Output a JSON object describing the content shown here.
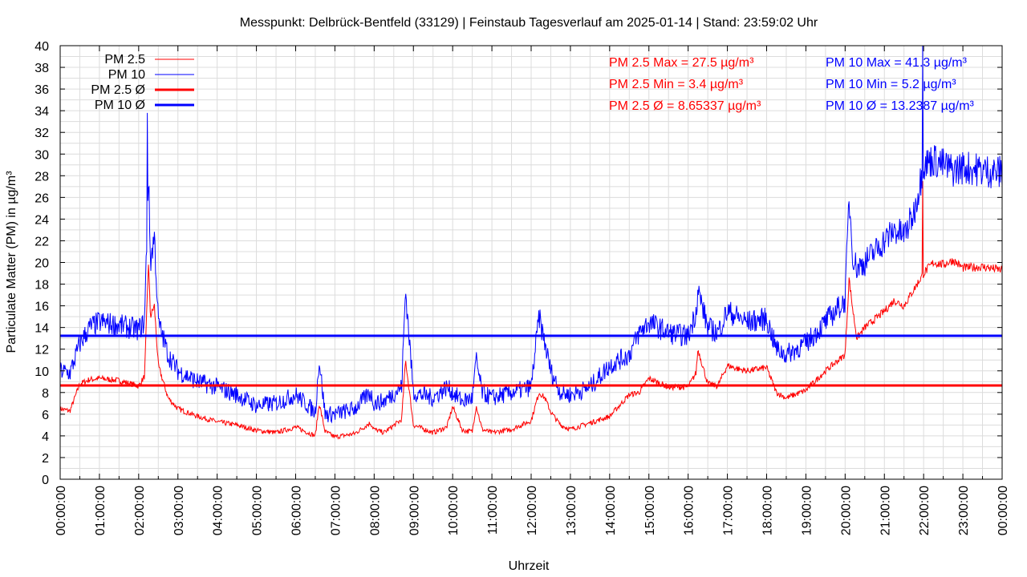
{
  "chart_data": {
    "type": "line",
    "title": "Messpunkt: Delbrück-Bentfeld (33129) | Feinstaub Tagesverlauf am 2025-01-14 | Stand: 23:59:02 Uhr",
    "xlabel": "Uhrzeit",
    "ylabel": "Particulate Matter (PM) in µg/m³",
    "ylim": [
      0,
      40
    ],
    "xlim_hours": [
      0,
      24
    ],
    "yticks": [
      0,
      2,
      4,
      6,
      8,
      10,
      12,
      14,
      16,
      18,
      20,
      22,
      24,
      26,
      28,
      30,
      32,
      34,
      36,
      38,
      40
    ],
    "xticks": [
      "00:00:00",
      "01:00:00",
      "02:00:00",
      "03:00:00",
      "04:00:00",
      "05:00:00",
      "06:00:00",
      "07:00:00",
      "08:00:00",
      "09:00:00",
      "10:00:00",
      "11:00:00",
      "12:00:00",
      "13:00:00",
      "14:00:00",
      "15:00:00",
      "16:00:00",
      "17:00:00",
      "18:00:00",
      "19:00:00",
      "20:00:00",
      "21:00:00",
      "22:00:00",
      "23:00:00",
      "00:00:00"
    ],
    "grid": true,
    "legend_position": "top-left",
    "series": [
      {
        "name": "PM 2.5",
        "color": "#ff0000",
        "x_hours": [
          0,
          0.25,
          0.5,
          0.75,
          1.0,
          1.5,
          2.0,
          2.15,
          2.25,
          2.3,
          2.4,
          2.5,
          2.75,
          3.0,
          3.5,
          4.0,
          4.5,
          5.0,
          5.5,
          6.0,
          6.5,
          6.6,
          6.75,
          7.0,
          7.5,
          7.9,
          8.0,
          8.25,
          8.7,
          8.8,
          9.0,
          9.5,
          9.85,
          10.0,
          10.25,
          10.5,
          10.6,
          10.75,
          11.0,
          11.5,
          12.0,
          12.2,
          12.35,
          12.5,
          12.75,
          13.0,
          13.5,
          14.0,
          14.5,
          14.75,
          15.0,
          15.5,
          16.0,
          16.2,
          16.25,
          16.5,
          16.75,
          17.0,
          17.25,
          17.5,
          18.0,
          18.25,
          18.5,
          19.0,
          19.5,
          20.0,
          20.1,
          20.2,
          20.3,
          20.5,
          21.0,
          21.25,
          21.5,
          21.75,
          22.0,
          22.25,
          22.5,
          22.75,
          23.0,
          23.5,
          24.0
        ],
        "values": [
          6.5,
          6.3,
          8.8,
          9.2,
          9.3,
          9.1,
          8.6,
          9.5,
          20.0,
          15.0,
          16.0,
          10.5,
          7.5,
          6.5,
          5.8,
          5.3,
          5.0,
          4.5,
          4.3,
          4.8,
          4.0,
          7.0,
          4.4,
          3.9,
          4.2,
          5.2,
          4.6,
          4.3,
          5.5,
          11.0,
          5.0,
          4.3,
          4.8,
          6.7,
          4.5,
          4.4,
          6.8,
          4.6,
          4.3,
          4.6,
          5.4,
          8.0,
          7.5,
          6.2,
          5.0,
          4.6,
          5.2,
          5.8,
          7.8,
          8.0,
          9.3,
          8.5,
          8.5,
          9.8,
          12.0,
          8.8,
          8.6,
          10.5,
          10.2,
          10.0,
          10.3,
          8.0,
          7.5,
          8.2,
          10.0,
          11.5,
          18.5,
          15.5,
          13.0,
          14.0,
          15.5,
          16.5,
          16.0,
          17.5,
          19.0,
          20.0,
          19.8,
          20.2,
          19.5,
          19.6,
          19.3
        ],
        "max": 27.5,
        "min": 3.4,
        "mean": 8.65337
      },
      {
        "name": "PM 10",
        "color": "#0000ff",
        "x_hours": [
          0,
          0.25,
          0.5,
          0.75,
          1.0,
          1.5,
          2.0,
          2.15,
          2.25,
          2.3,
          2.4,
          2.5,
          2.75,
          3.0,
          3.5,
          4.0,
          4.5,
          5.0,
          5.5,
          6.0,
          6.5,
          6.6,
          6.75,
          7.0,
          7.5,
          7.9,
          8.0,
          8.25,
          8.7,
          8.8,
          9.0,
          9.5,
          9.85,
          10.0,
          10.25,
          10.5,
          10.6,
          10.75,
          11.0,
          11.5,
          12.0,
          12.2,
          12.35,
          12.5,
          12.75,
          13.0,
          13.5,
          14.0,
          14.5,
          14.75,
          15.0,
          15.5,
          16.0,
          16.2,
          16.25,
          16.5,
          16.75,
          17.0,
          17.25,
          17.5,
          18.0,
          18.25,
          18.5,
          19.0,
          19.5,
          20.0,
          20.1,
          20.2,
          20.3,
          20.5,
          21.0,
          21.25,
          21.5,
          21.75,
          22.0,
          22.25,
          22.5,
          22.75,
          23.0,
          23.5,
          24.0
        ],
        "values": [
          10.0,
          9.8,
          12.5,
          14.0,
          14.5,
          14.2,
          13.8,
          14.5,
          28.0,
          20.0,
          22.5,
          14.5,
          11.5,
          10.0,
          9.0,
          8.5,
          7.8,
          6.8,
          7.0,
          7.8,
          6.2,
          11.0,
          6.0,
          6.0,
          6.5,
          8.0,
          7.0,
          7.2,
          8.5,
          17.5,
          8.0,
          7.5,
          8.5,
          8.0,
          7.2,
          7.5,
          11.0,
          8.0,
          7.5,
          8.0,
          8.5,
          15.0,
          12.5,
          10.0,
          8.0,
          7.8,
          8.5,
          10.5,
          11.5,
          13.5,
          14.5,
          13.5,
          13.2,
          15.5,
          17.5,
          14.0,
          13.5,
          15.5,
          15.0,
          14.5,
          14.8,
          12.0,
          11.5,
          12.5,
          14.5,
          16.5,
          26.0,
          20.5,
          19.5,
          20.0,
          22.0,
          23.0,
          22.5,
          24.5,
          29.0,
          29.5,
          29.0,
          28.5,
          28.8,
          28.5,
          28.3
        ],
        "max": 41.3,
        "min": 5.2,
        "mean": 13.2387
      }
    ],
    "averages": [
      {
        "name": "PM 2.5 Ø",
        "value": 8.65337,
        "color": "#ff0000"
      },
      {
        "name": "PM 10 Ø",
        "value": 13.2387,
        "color": "#0000ff"
      }
    ],
    "peaks": [
      {
        "series": "PM 2.5",
        "x_hours": 21.97,
        "value": 27.5
      },
      {
        "series": "PM 10",
        "x_hours": 21.97,
        "value": 41.3
      },
      {
        "series": "PM 10",
        "x_hours": 2.22,
        "value": 33.8
      }
    ],
    "legend": [
      {
        "label": "PM 2.5",
        "color": "#ff0000",
        "weight": "thin"
      },
      {
        "label": "PM 10",
        "color": "#0000ff",
        "weight": "thin"
      },
      {
        "label": "PM 2.5 Ø",
        "color": "#ff0000",
        "weight": "thick"
      },
      {
        "label": "PM 10 Ø",
        "color": "#0000ff",
        "weight": "thick"
      }
    ],
    "annotations": {
      "pm25": [
        "PM 2.5 Max = 27.5 µg/m³",
        "PM 2.5 Min = 3.4 µg/m³",
        "PM 2.5 Ø = 8.65337 µg/m³"
      ],
      "pm10": [
        "PM 10 Max = 41.3 µg/m³",
        "PM 10 Min = 5.2 µg/m³",
        "PM 10 Ø = 13.2387 µg/m³"
      ]
    }
  }
}
